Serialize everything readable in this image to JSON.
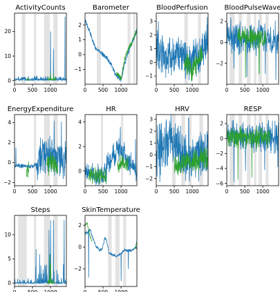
{
  "chart_data": [
    {
      "type": "line",
      "title": "ActivityCounts",
      "xlim": [
        0,
        1440
      ],
      "ylim": [
        -1.5,
        27.5
      ],
      "xticks": [
        0,
        500,
        1000
      ],
      "yticks": [
        0,
        10,
        20
      ],
      "bands": [
        [
          200,
          300
        ],
        [
          540,
          600
        ],
        [
          820,
          980
        ],
        [
          1080,
          1200
        ]
      ],
      "series": [
        {
          "color": "#1f77b4",
          "trace": "spiky",
          "base": 0.3,
          "amp": 1.6,
          "noise": 0.6,
          "spikes": [
            [
              1000,
              20
            ],
            [
              1080,
              13
            ],
            [
              1400,
              26
            ]
          ]
        },
        {
          "color": "#2ca02c",
          "trace": "spiky",
          "base": 0.3,
          "amp": 1.2,
          "noise": 0.5,
          "spikes": [
            [
              1000,
              3
            ],
            [
              1080,
              3
            ]
          ],
          "on": [
            [
              900,
              1150
            ],
            [
              330,
              400
            ]
          ]
        }
      ]
    },
    {
      "type": "line",
      "title": "Barometer",
      "xlim": [
        0,
        1440
      ],
      "ylim": [
        -2,
        2.8
      ],
      "xticks": [
        0,
        500,
        1000
      ],
      "yticks": [
        -1,
        0,
        1,
        2
      ],
      "bands": [
        [
          330,
          440
        ],
        [
          1180,
          1260
        ],
        [
          1340,
          1400
        ]
      ],
      "series": [
        {
          "color": "#1f77b4",
          "trace": "path",
          "noise": 0.15,
          "pts": [
            [
              0,
              2.3
            ],
            [
              120,
              1.6
            ],
            [
              300,
              0.4
            ],
            [
              500,
              0.0
            ],
            [
              600,
              -0.2
            ],
            [
              760,
              -0.8
            ],
            [
              850,
              -1.4
            ],
            [
              1000,
              -1.7
            ],
            [
              1100,
              -0.6
            ],
            [
              1250,
              0.5
            ],
            [
              1440,
              1.6
            ]
          ]
        },
        {
          "color": "#2ca02c",
          "trace": "path",
          "noise": 0.15,
          "pts": [
            [
              900,
              -1.3
            ],
            [
              1000,
              -1.6
            ],
            [
              1100,
              -0.3
            ],
            [
              1200,
              0.4
            ],
            [
              1300,
              0.8
            ],
            [
              1440,
              1.7
            ]
          ],
          "on": [
            [
              880,
              1440
            ]
          ]
        }
      ]
    },
    {
      "type": "line",
      "title": "BloodPerfusion",
      "xlim": [
        0,
        1440
      ],
      "ylim": [
        -1.6,
        3.6
      ],
      "xticks": [
        0,
        500,
        1000
      ],
      "yticks": [
        -1,
        0,
        1,
        2,
        3
      ],
      "bands": [
        [
          780,
          880
        ],
        [
          1160,
          1240
        ]
      ],
      "series": [
        {
          "color": "#1f77b4",
          "trace": "noise",
          "base": 0.5,
          "amp": 1.2,
          "noise": 0.5,
          "pts": [
            [
              0,
              1
            ],
            [
              300,
              0.3
            ],
            [
              700,
              0.6
            ],
            [
              1000,
              0
            ],
            [
              1440,
              1.5
            ]
          ],
          "spikes": [
            [
              60,
              3
            ],
            [
              1420,
              3.3
            ]
          ]
        },
        {
          "color": "#2ca02c",
          "trace": "noise",
          "base": 0.0,
          "amp": 0.6,
          "noise": 0.3,
          "pts": [
            [
              780,
              0
            ],
            [
              1000,
              -0.6
            ],
            [
              1200,
              0.4
            ],
            [
              1440,
              1
            ]
          ],
          "on": [
            [
              780,
              1300
            ]
          ]
        }
      ]
    },
    {
      "type": "line",
      "title": "BloodPulseWave",
      "xlim": [
        0,
        1440
      ],
      "ylim": [
        -4,
        2.8
      ],
      "xticks": [
        0,
        500,
        1000
      ],
      "yticks": [
        -2,
        0,
        2
      ],
      "bands": [
        [
          80,
          220
        ],
        [
          330,
          430
        ],
        [
          560,
          660
        ],
        [
          760,
          820
        ],
        [
          880,
          980
        ],
        [
          1080,
          1160
        ]
      ],
      "series": [
        {
          "color": "#1f77b4",
          "trace": "noise",
          "base": 0.6,
          "amp": 1.0,
          "noise": 0.9,
          "pts": [
            [
              0,
              0.8
            ],
            [
              500,
              0.3
            ],
            [
              1000,
              0.5
            ],
            [
              1440,
              0.2
            ]
          ],
          "spikes": [
            [
              200,
              -2.5
            ],
            [
              560,
              -3.3
            ],
            [
              1070,
              -3.0
            ],
            [
              1360,
              -3.6
            ]
          ]
        },
        {
          "color": "#2ca02c",
          "trace": "noise",
          "base": 0.6,
          "amp": 0.6,
          "noise": 0.6,
          "pts": [
            [
              0,
              0.6
            ],
            [
              1440,
              0.3
            ]
          ],
          "on": [
            [
              300,
              1100
            ]
          ],
          "spikes": [
            [
              520,
              -3.4
            ],
            [
              900,
              -3.0
            ]
          ]
        }
      ]
    },
    {
      "type": "line",
      "title": "EnergyExpenditure",
      "xlim": [
        0,
        1440
      ],
      "ylim": [
        -2.3,
        4.8
      ],
      "xticks": [
        0,
        500,
        1000
      ],
      "yticks": [
        -2,
        0,
        2,
        4
      ],
      "bands": [
        [
          540,
          600
        ],
        [
          820,
          980
        ],
        [
          1080,
          1200
        ]
      ],
      "series": [
        {
          "color": "#1f77b4",
          "trace": "noise",
          "base": -0.4,
          "amp": 1.5,
          "noise": 0.8,
          "pts": [
            [
              0,
              -0.3
            ],
            [
              500,
              -0.4
            ],
            [
              650,
              0
            ],
            [
              800,
              1.2
            ],
            [
              1000,
              0.6
            ],
            [
              1440,
              0.3
            ]
          ],
          "quiet": [
            [
              0,
              600
            ]
          ],
          "spikes": [
            [
              40,
              1.5
            ],
            [
              1100,
              4.2
            ],
            [
              1300,
              4.1
            ]
          ]
        },
        {
          "color": "#2ca02c",
          "trace": "noise",
          "base": -0.4,
          "amp": 0.8,
          "noise": 0.5,
          "pts": [
            [
              300,
              -0.4
            ],
            [
              1440,
              0
            ]
          ],
          "on": [
            [
              330,
              400
            ],
            [
              900,
              1200
            ]
          ]
        }
      ]
    },
    {
      "type": "line",
      "title": "HR",
      "xlim": [
        0,
        1440
      ],
      "ylim": [
        -1.2,
        4.6
      ],
      "xticks": [
        0,
        500,
        1000
      ],
      "yticks": [
        0,
        2,
        4
      ],
      "bands": [
        [
          440,
          500
        ],
        [
          1000,
          1060
        ]
      ],
      "series": [
        {
          "color": "#1f77b4",
          "trace": "noise",
          "base": 0.2,
          "amp": 0.5,
          "noise": 0.6,
          "pts": [
            [
              0,
              0
            ],
            [
              300,
              -0.5
            ],
            [
              500,
              -0.2
            ],
            [
              700,
              0.8
            ],
            [
              900,
              1.8
            ],
            [
              1100,
              1.4
            ],
            [
              1440,
              -0.3
            ]
          ],
          "spikes": [
            [
              980,
              3.6
            ],
            [
              1400,
              2.6
            ]
          ]
        },
        {
          "color": "#2ca02c",
          "trace": "noise",
          "base": -0.3,
          "amp": 0.4,
          "noise": 0.4,
          "pts": [
            [
              0,
              -0.3
            ],
            [
              600,
              -0.5
            ],
            [
              1000,
              0.8
            ],
            [
              1440,
              0
            ]
          ],
          "on": [
            [
              100,
              600
            ],
            [
              900,
              1200
            ]
          ]
        }
      ]
    },
    {
      "type": "line",
      "title": "HRV",
      "xlim": [
        0,
        1440
      ],
      "ylim": [
        -2.6,
        3.4
      ],
      "xticks": [
        0,
        500,
        1000
      ],
      "yticks": [
        -2,
        -1,
        0,
        1,
        2,
        3
      ],
      "bands": [
        [
          440,
          540
        ],
        [
          700,
          800
        ],
        [
          900,
          980
        ],
        [
          1200,
          1300
        ]
      ],
      "series": [
        {
          "color": "#1f77b4",
          "trace": "noise",
          "base": 0.5,
          "amp": 1.6,
          "noise": 0.9,
          "pts": [
            [
              0,
              0
            ],
            [
              300,
              1.2
            ],
            [
              500,
              0.8
            ],
            [
              800,
              0
            ],
            [
              1000,
              -0.5
            ],
            [
              1440,
              0.2
            ]
          ],
          "spikes": [
            [
              900,
              3.1
            ],
            [
              100,
              -2.3
            ]
          ]
        },
        {
          "color": "#2ca02c",
          "trace": "noise",
          "base": -0.5,
          "amp": 0.6,
          "noise": 0.5,
          "pts": [
            [
              500,
              -0.8
            ],
            [
              1440,
              -0.2
            ]
          ],
          "on": [
            [
              500,
              1440
            ]
          ]
        }
      ]
    },
    {
      "type": "line",
      "title": "RESP",
      "xlim": [
        0,
        1440
      ],
      "ylim": [
        -6.3,
        3.2
      ],
      "xticks": [
        0,
        500,
        1000
      ],
      "yticks": [
        -6,
        -4,
        -2,
        0,
        2
      ],
      "bands": [
        [
          80,
          220
        ],
        [
          330,
          430
        ],
        [
          560,
          660
        ],
        [
          760,
          820
        ],
        [
          880,
          980
        ],
        [
          1080,
          1160
        ]
      ],
      "series": [
        {
          "color": "#1f77b4",
          "trace": "noise",
          "base": 0.2,
          "amp": 1.4,
          "noise": 1.0,
          "pts": [
            [
              0,
              0.5
            ],
            [
              500,
              0
            ],
            [
              1000,
              0.3
            ],
            [
              1440,
              0
            ]
          ],
          "spikes": [
            [
              200,
              -5.8
            ],
            [
              520,
              -4.3
            ],
            [
              1050,
              -4.2
            ],
            [
              1420,
              -3.8
            ]
          ]
        },
        {
          "color": "#2ca02c",
          "trace": "noise",
          "base": 0.2,
          "amp": 0.8,
          "noise": 0.9,
          "pts": [
            [
              0,
              0.3
            ],
            [
              1440,
              0
            ]
          ],
          "on": [
            [
              0,
              1200
            ]
          ],
          "spikes": [
            [
              310,
              -5.5
            ],
            [
              700,
              -5.2
            ]
          ]
        }
      ]
    },
    {
      "type": "line",
      "title": "Steps",
      "xlim": [
        0,
        1440
      ],
      "ylim": [
        -0.7,
        14
      ],
      "xticks": [
        0,
        500,
        1000
      ],
      "yticks": [
        0,
        5,
        10
      ],
      "bands": [
        [
          100,
          340
        ],
        [
          540,
          600
        ],
        [
          820,
          980
        ],
        [
          1080,
          1200
        ]
      ],
      "series": [
        {
          "color": "#1f77b4",
          "trace": "spiky",
          "base": 0,
          "amp": 1,
          "noise": 0.2,
          "spikes": [
            [
              600,
              7
            ],
            [
              700,
              3
            ],
            [
              960,
              11
            ],
            [
              1000,
              13
            ],
            [
              1080,
              13
            ],
            [
              1380,
              13
            ],
            [
              700,
              6
            ]
          ],
          "dense": [
            [
              560,
              1440
            ]
          ]
        },
        {
          "color": "#2ca02c",
          "trace": "spiky",
          "base": 0,
          "amp": 0.8,
          "noise": 0.2,
          "spikes": [
            [
              980,
              6
            ],
            [
              1010,
              4
            ]
          ],
          "on": [
            [
              900,
              1100
            ]
          ]
        }
      ]
    },
    {
      "type": "line",
      "title": "SkinTemperature",
      "xlim": [
        0,
        1440
      ],
      "ylim": [
        -3.6,
        2.9
      ],
      "xticks": [
        0,
        500,
        1000
      ],
      "yticks": [
        -2,
        0,
        2
      ],
      "bands": [
        [
          640,
          740
        ],
        [
          840,
          960
        ],
        [
          1060,
          1140
        ]
      ],
      "series": [
        {
          "color": "#1f77b4",
          "trace": "path",
          "noise": 0.12,
          "pts": [
            [
              0,
              1.2
            ],
            [
              80,
              1.4
            ],
            [
              150,
              1.6
            ],
            [
              200,
              1.0
            ],
            [
              300,
              0.1
            ],
            [
              400,
              -0.3
            ],
            [
              480,
              -0.1
            ],
            [
              550,
              0.9
            ],
            [
              600,
              0.6
            ],
            [
              660,
              -0.5
            ],
            [
              760,
              -0.7
            ],
            [
              900,
              -0.8
            ],
            [
              1000,
              -0.6
            ],
            [
              1100,
              -0.3
            ],
            [
              1300,
              -0.3
            ],
            [
              1440,
              0
            ]
          ],
          "spikes": [
            [
              100,
              -2.8
            ],
            [
              1000,
              -3.1
            ],
            [
              1200,
              -2.0
            ]
          ]
        },
        {
          "color": "#2ca02c",
          "trace": "path",
          "noise": 0.1,
          "pts": [
            [
              0,
              2.0
            ],
            [
              60,
              2.2
            ],
            [
              120,
              1.2
            ],
            [
              200,
              0.4
            ],
            [
              1380,
              -0.3
            ],
            [
              1440,
              0.5
            ]
          ],
          "on": [
            [
              0,
              200
            ],
            [
              1380,
              1440
            ]
          ]
        }
      ]
    }
  ]
}
